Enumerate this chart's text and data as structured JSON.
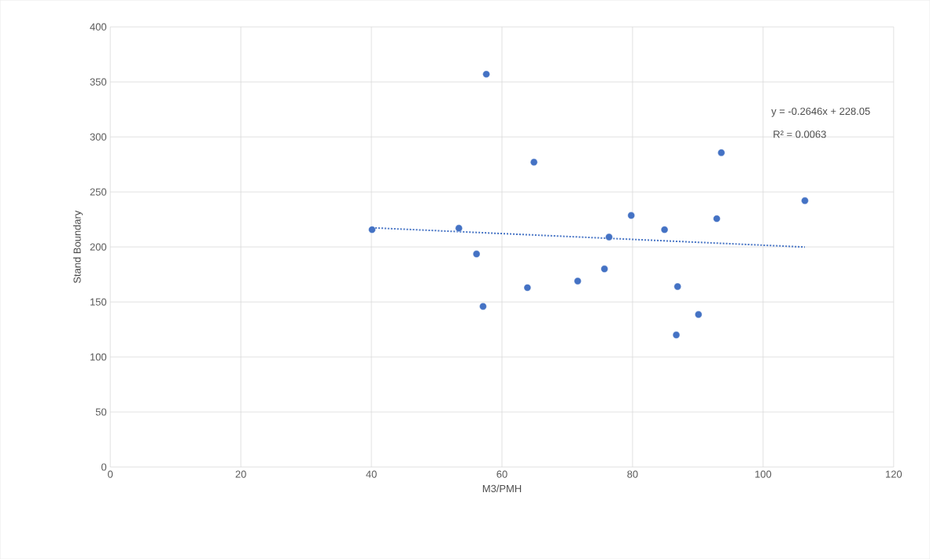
{
  "chart_data": {
    "type": "scatter",
    "xlabel": "M3/PMH",
    "ylabel": "Stand Boundary",
    "xlim": [
      0,
      120
    ],
    "ylim": [
      0,
      400
    ],
    "xticks": [
      0,
      20,
      40,
      60,
      80,
      100,
      120
    ],
    "yticks": [
      0,
      50,
      100,
      150,
      200,
      250,
      300,
      350,
      400
    ],
    "grid": true,
    "marker": "circle",
    "annotations": [
      "y = -0.2646x + 228.05",
      "R² = 0.0063"
    ],
    "series": [
      {
        "color": "#4472c4",
        "x": [
          40.1,
          53.4,
          56.1,
          57.1,
          57.6,
          63.9,
          64.9,
          71.6,
          75.7,
          76.4,
          79.8,
          84.9,
          86.7,
          86.9,
          90.1,
          92.9,
          93.6,
          106.4
        ],
        "values": [
          215.7,
          217,
          193.6,
          146,
          357,
          163,
          277,
          169,
          180,
          209,
          228.6,
          215.7,
          120,
          164,
          138.6,
          225.7,
          285.7,
          242
        ]
      },
      {
        "type": "line",
        "color": "#4472c4",
        "line_style": "dotted",
        "marker": "none",
        "x": [
          40.1,
          106.4
        ],
        "values": [
          217.4,
          199.9
        ]
      }
    ]
  }
}
